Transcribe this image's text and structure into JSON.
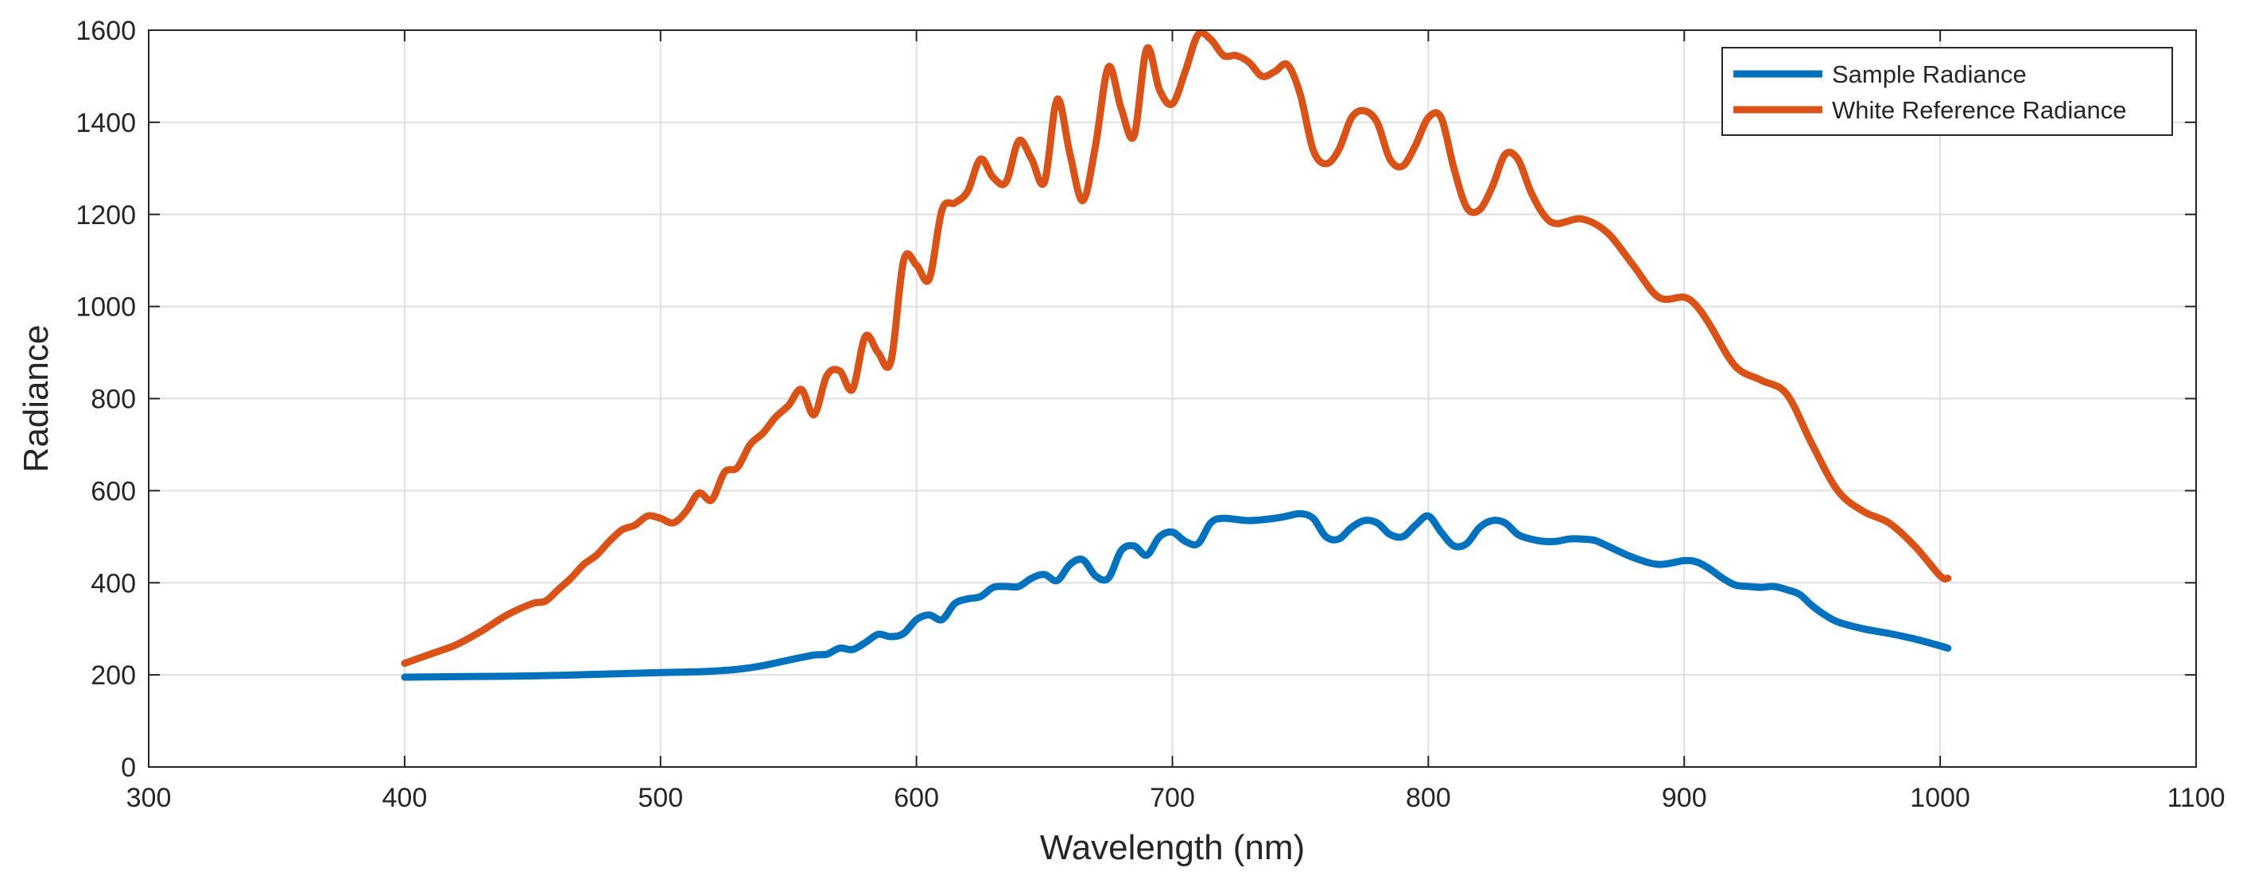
{
  "chart_data": {
    "type": "line",
    "title": "",
    "xlabel": "Wavelength (nm)",
    "ylabel": "Radiance",
    "xlim": [
      300,
      1100
    ],
    "ylim": [
      0,
      1600
    ],
    "xticks": [
      300,
      400,
      500,
      600,
      700,
      800,
      900,
      1000,
      1100
    ],
    "yticks": [
      0,
      200,
      400,
      600,
      800,
      1000,
      1200,
      1400,
      1600
    ],
    "grid": true,
    "legend_position": "top-right",
    "series": [
      {
        "name": "Sample Radiance",
        "color": "#0072BD",
        "x": [
          400,
          420,
          440,
          460,
          480,
          500,
          510,
          520,
          530,
          540,
          550,
          560,
          565,
          570,
          575,
          580,
          585,
          590,
          595,
          600,
          605,
          610,
          615,
          620,
          625,
          630,
          635,
          640,
          645,
          650,
          655,
          660,
          665,
          670,
          675,
          680,
          685,
          690,
          695,
          700,
          705,
          710,
          715,
          720,
          730,
          740,
          745,
          750,
          755,
          760,
          765,
          770,
          775,
          780,
          785,
          790,
          795,
          800,
          805,
          810,
          815,
          820,
          825,
          830,
          835,
          840,
          845,
          850,
          855,
          860,
          865,
          870,
          880,
          890,
          900,
          905,
          910,
          915,
          920,
          925,
          930,
          935,
          940,
          945,
          950,
          955,
          960,
          970,
          980,
          990,
          1000,
          1003
        ],
        "y": [
          195,
          196,
          197,
          199,
          202,
          205,
          206,
          208,
          212,
          220,
          232,
          243,
          245,
          258,
          255,
          270,
          288,
          283,
          290,
          320,
          330,
          320,
          355,
          365,
          370,
          390,
          392,
          392,
          410,
          418,
          405,
          440,
          450,
          415,
          410,
          470,
          480,
          460,
          500,
          510,
          490,
          485,
          530,
          540,
          535,
          540,
          545,
          550,
          540,
          500,
          495,
          520,
          535,
          530,
          505,
          500,
          525,
          545,
          510,
          480,
          485,
          520,
          535,
          530,
          505,
          495,
          490,
          490,
          495,
          495,
          492,
          480,
          455,
          440,
          448,
          445,
          430,
          410,
          395,
          392,
          390,
          392,
          385,
          375,
          350,
          330,
          315,
          300,
          290,
          278,
          263,
          258
        ]
      },
      {
        "name": "White Reference Radiance",
        "color": "#D95319",
        "x": [
          400,
          410,
          420,
          430,
          440,
          450,
          455,
          460,
          465,
          470,
          475,
          480,
          485,
          490,
          495,
          500,
          505,
          510,
          515,
          520,
          525,
          530,
          535,
          540,
          545,
          550,
          555,
          560,
          565,
          570,
          575,
          580,
          585,
          590,
          595,
          600,
          605,
          610,
          615,
          620,
          625,
          630,
          635,
          640,
          645,
          650,
          655,
          660,
          665,
          670,
          675,
          680,
          685,
          690,
          695,
          700,
          705,
          710,
          715,
          720,
          725,
          730,
          735,
          740,
          745,
          750,
          755,
          760,
          765,
          770,
          775,
          780,
          785,
          790,
          795,
          800,
          805,
          810,
          815,
          820,
          825,
          830,
          835,
          840,
          845,
          850,
          860,
          870,
          880,
          890,
          900,
          905,
          910,
          920,
          930,
          940,
          950,
          960,
          970,
          980,
          990,
          1000,
          1003
        ],
        "y": [
          225,
          245,
          265,
          295,
          330,
          355,
          360,
          385,
          410,
          440,
          460,
          490,
          515,
          525,
          545,
          540,
          530,
          555,
          595,
          580,
          640,
          650,
          700,
          725,
          760,
          785,
          820,
          765,
          850,
          860,
          820,
          935,
          900,
          880,
          1100,
          1090,
          1060,
          1210,
          1225,
          1250,
          1320,
          1280,
          1270,
          1360,
          1320,
          1270,
          1450,
          1330,
          1230,
          1350,
          1520,
          1430,
          1370,
          1560,
          1470,
          1440,
          1510,
          1590,
          1580,
          1545,
          1545,
          1530,
          1500,
          1510,
          1525,
          1460,
          1340,
          1310,
          1340,
          1410,
          1425,
          1400,
          1320,
          1305,
          1350,
          1410,
          1410,
          1300,
          1215,
          1210,
          1260,
          1330,
          1320,
          1250,
          1200,
          1180,
          1190,
          1160,
          1090,
          1020,
          1020,
          1000,
          960,
          870,
          840,
          810,
          700,
          600,
          555,
          530,
          480,
          415,
          410
        ]
      }
    ]
  }
}
